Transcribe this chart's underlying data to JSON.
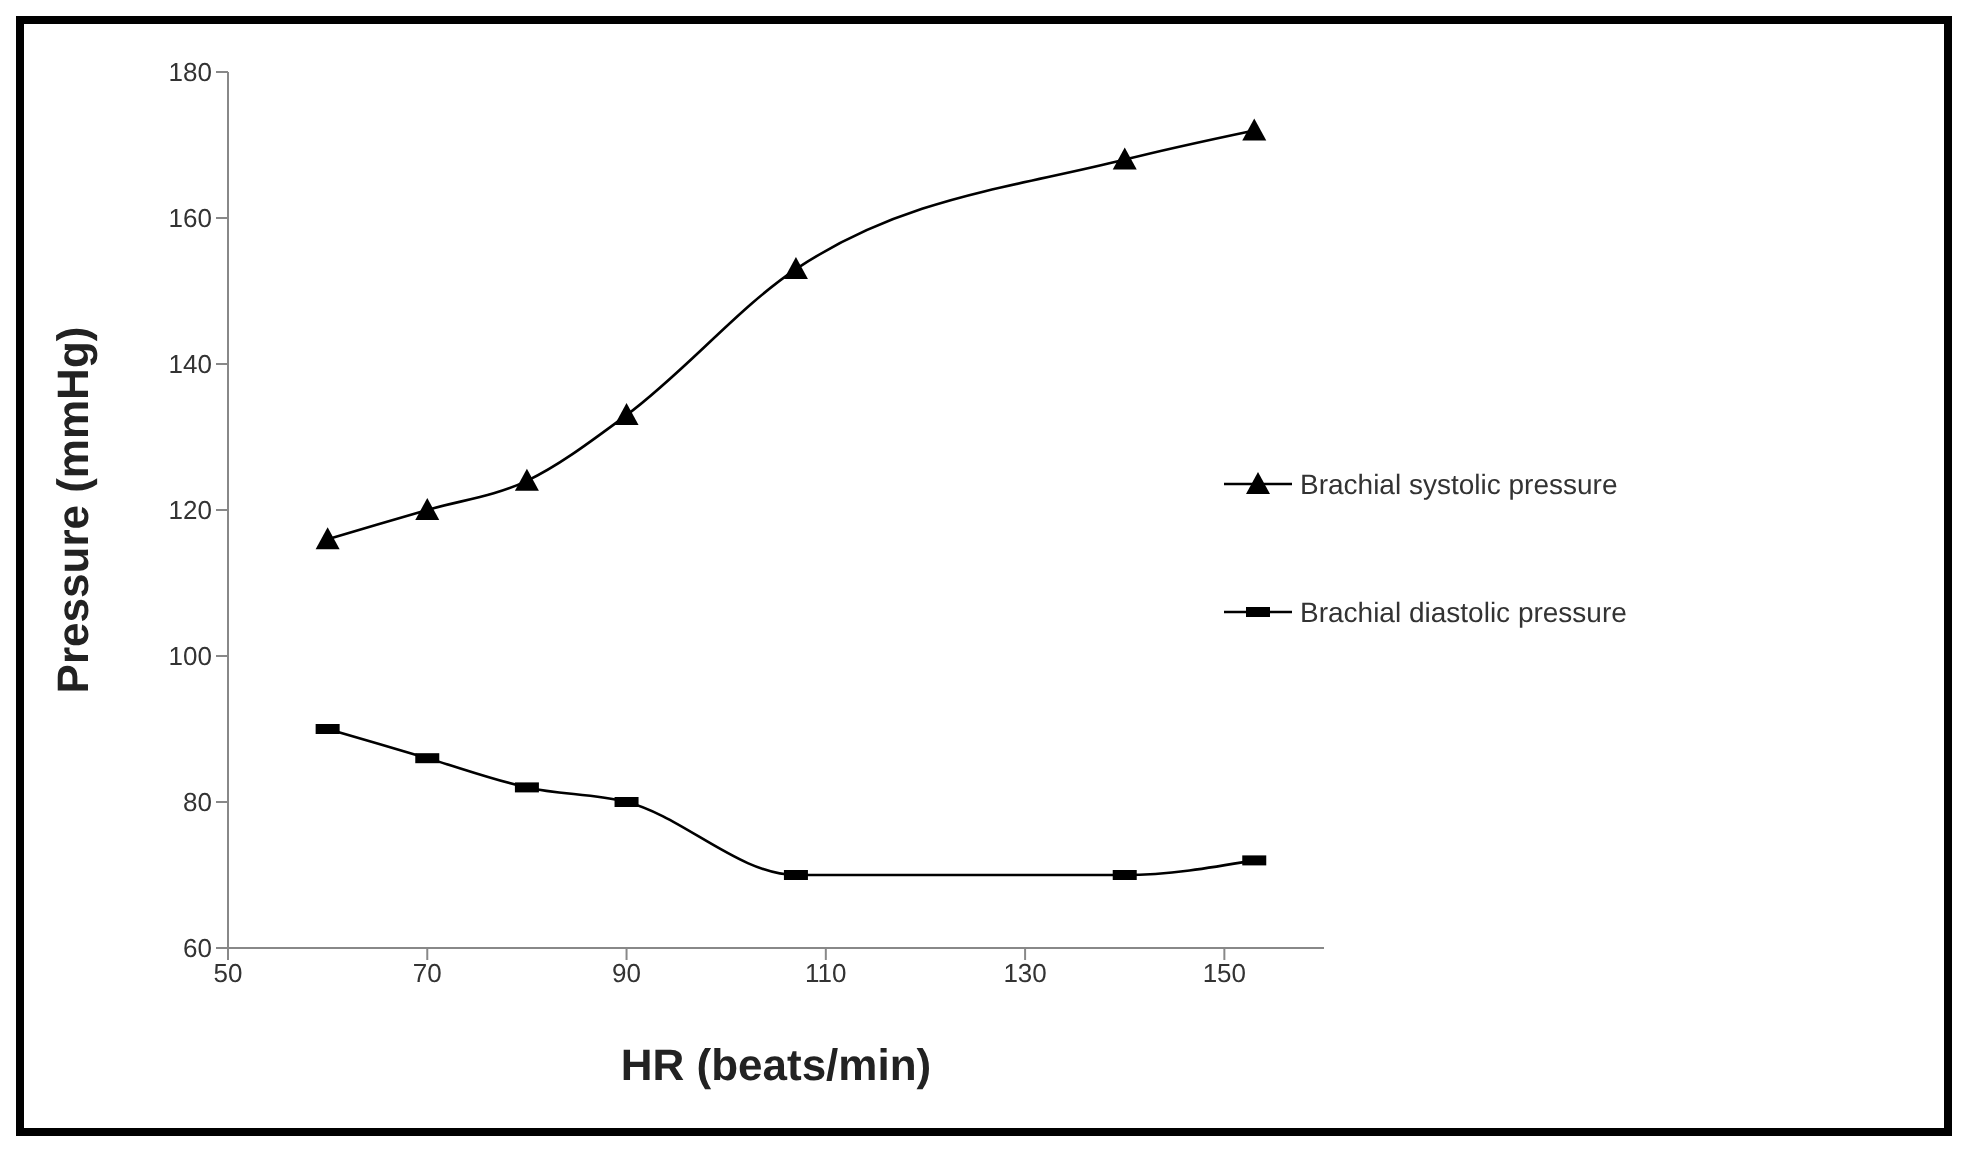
{
  "chart_data": {
    "type": "line",
    "xlabel": "HR (beats/min)",
    "ylabel": "Pressure (mmHg)",
    "x": [
      60,
      70,
      80,
      90,
      107,
      140,
      153
    ],
    "series": [
      {
        "name": "Brachial systolic pressure",
        "color": "#000000",
        "marker": "triangle",
        "values": [
          116,
          120,
          124,
          133,
          153,
          168,
          172
        ]
      },
      {
        "name": "Brachial diastolic pressure",
        "color": "#000000",
        "marker": "square",
        "values": [
          90,
          86,
          82,
          80,
          70,
          70,
          72
        ]
      }
    ],
    "xlim": [
      50,
      160
    ],
    "xticks": [
      50,
      70,
      90,
      110,
      130,
      150
    ],
    "ylim": [
      60,
      180
    ],
    "yticks": [
      60,
      80,
      100,
      120,
      140,
      160,
      180
    ],
    "grid": false,
    "legend": "right",
    "line_style": "solid"
  }
}
